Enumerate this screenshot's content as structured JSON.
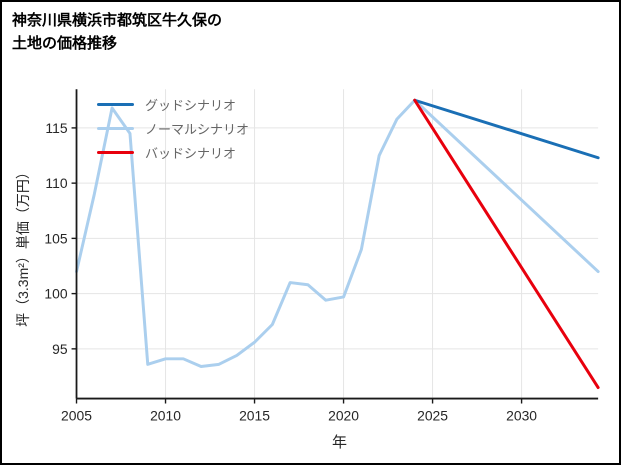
{
  "page": {
    "title_line1": "神奈川県横浜市都筑区牛久保の",
    "title_line2": "土地の価格推移"
  },
  "chart_data": {
    "type": "line",
    "title": "神奈川県横浜市都筑区牛久保の土地の価格推移",
    "xlabel": "年",
    "ylabel": "坪（3.3m²）単価（万円）",
    "xlim": [
      2005,
      2034.3
    ],
    "ylim": [
      90.5,
      118.5
    ],
    "xticks": [
      2005,
      2010,
      2015,
      2020,
      2025,
      2030
    ],
    "yticks": [
      95,
      100,
      105,
      110,
      115
    ],
    "grid": true,
    "legend_position": "upper-left",
    "colors": {
      "grid": "#e5e5e5",
      "axis": "#1a1a1a",
      "tick_text": "#262626",
      "legend_text": "#666666"
    },
    "series": [
      {
        "id": "good",
        "name": "グッドシナリオ",
        "color": "#1a6fb5",
        "z": 2,
        "x": [
          2024,
          2034.3
        ],
        "values": [
          117.5,
          112.3
        ]
      },
      {
        "id": "normal",
        "name": "ノーマルシナリオ",
        "color": "#abcfee",
        "z": 1,
        "x": [
          2005,
          2006,
          2007,
          2008,
          2009,
          2010,
          2011,
          2012,
          2013,
          2014,
          2015,
          2016,
          2017,
          2018,
          2019,
          2020,
          2021,
          2022,
          2023,
          2024,
          2034.3
        ],
        "values": [
          102,
          109,
          116.8,
          114.5,
          93.6,
          94.1,
          94.1,
          93.4,
          93.6,
          94.4,
          95.6,
          97.2,
          101.0,
          100.8,
          99.4,
          99.7,
          104,
          112.5,
          115.8,
          117.5,
          102
        ]
      },
      {
        "id": "bad",
        "name": "バッドシナリオ",
        "color": "#e8000d",
        "z": 3,
        "x": [
          2024,
          2034.3
        ],
        "values": [
          117.5,
          91.5
        ]
      }
    ]
  }
}
